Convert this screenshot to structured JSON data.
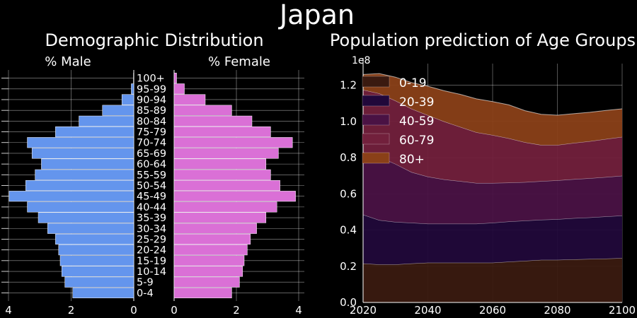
{
  "figure_title": "Japan",
  "chart_data": [
    {
      "type": "bar",
      "title": "Demographic Distribution",
      "left_label": "% Male",
      "right_label": "% Female",
      "categories": [
        "0-4",
        "5-9",
        "10-14",
        "15-19",
        "20-24",
        "25-29",
        "30-34",
        "35-39",
        "40-44",
        "45-49",
        "50-54",
        "55-59",
        "60-64",
        "65-69",
        "70-74",
        "75-79",
        "80-84",
        "85-89",
        "90-94",
        "95-99",
        "100+"
      ],
      "series": [
        {
          "name": "% Male",
          "color": "#6495ED",
          "values": [
            1.95,
            2.2,
            2.3,
            2.35,
            2.4,
            2.5,
            2.75,
            3.05,
            3.4,
            3.98,
            3.45,
            3.15,
            2.95,
            3.25,
            3.4,
            2.5,
            1.75,
            1.0,
            0.38,
            0.08,
            0.01
          ]
        },
        {
          "name": "% Female",
          "color": "#DA70D6",
          "values": [
            1.85,
            2.1,
            2.2,
            2.25,
            2.35,
            2.45,
            2.65,
            2.95,
            3.3,
            3.9,
            3.4,
            3.1,
            2.95,
            3.35,
            3.8,
            3.1,
            2.5,
            1.85,
            1.0,
            0.33,
            0.08
          ]
        }
      ],
      "xlim": [
        0,
        4.2
      ],
      "xticks": [
        4,
        2,
        0,
        2,
        4
      ],
      "grid": true
    },
    {
      "type": "area",
      "title": "Population prediction of Age Groups",
      "y_multiplier": "1e8",
      "x": [
        2020,
        2025,
        2030,
        2035,
        2040,
        2045,
        2050,
        2055,
        2060,
        2065,
        2070,
        2075,
        2080,
        2085,
        2090,
        2095,
        2100
      ],
      "series": [
        {
          "name": "0-19",
          "color": "#3a1a10",
          "values": [
            0.215,
            0.21,
            0.21,
            0.215,
            0.22,
            0.22,
            0.22,
            0.22,
            0.22,
            0.225,
            0.23,
            0.235,
            0.235,
            0.238,
            0.24,
            0.242,
            0.245
          ]
        },
        {
          "name": "20-39",
          "color": "#21083a",
          "values": [
            0.27,
            0.245,
            0.235,
            0.225,
            0.215,
            0.215,
            0.215,
            0.215,
            0.22,
            0.222,
            0.222,
            0.222,
            0.225,
            0.228,
            0.23,
            0.233,
            0.235
          ]
        },
        {
          "name": "40-59",
          "color": "#4a1244",
          "values": [
            0.345,
            0.35,
            0.32,
            0.28,
            0.26,
            0.245,
            0.235,
            0.225,
            0.22,
            0.215,
            0.213,
            0.213,
            0.215,
            0.215,
            0.216,
            0.218,
            0.22
          ]
        },
        {
          "name": "60-79",
          "color": "#72203c",
          "values": [
            0.345,
            0.35,
            0.35,
            0.35,
            0.34,
            0.32,
            0.3,
            0.28,
            0.265,
            0.245,
            0.22,
            0.2,
            0.195,
            0.2,
            0.205,
            0.21,
            0.215
          ]
        },
        {
          "name": "80+",
          "color": "#8a4018",
          "values": [
            0.085,
            0.11,
            0.13,
            0.145,
            0.16,
            0.17,
            0.18,
            0.185,
            0.185,
            0.185,
            0.175,
            0.17,
            0.165,
            0.162,
            0.16,
            0.158,
            0.155
          ]
        }
      ],
      "xlim": [
        2020,
        2100
      ],
      "ylim": [
        0,
        1.32
      ],
      "xticks": [
        2020,
        2040,
        2060,
        2080,
        2100
      ],
      "yticks": [
        0.0,
        0.2,
        0.4,
        0.6,
        0.8,
        1.0,
        1.2
      ],
      "legend": "top-left",
      "grid": true
    }
  ]
}
